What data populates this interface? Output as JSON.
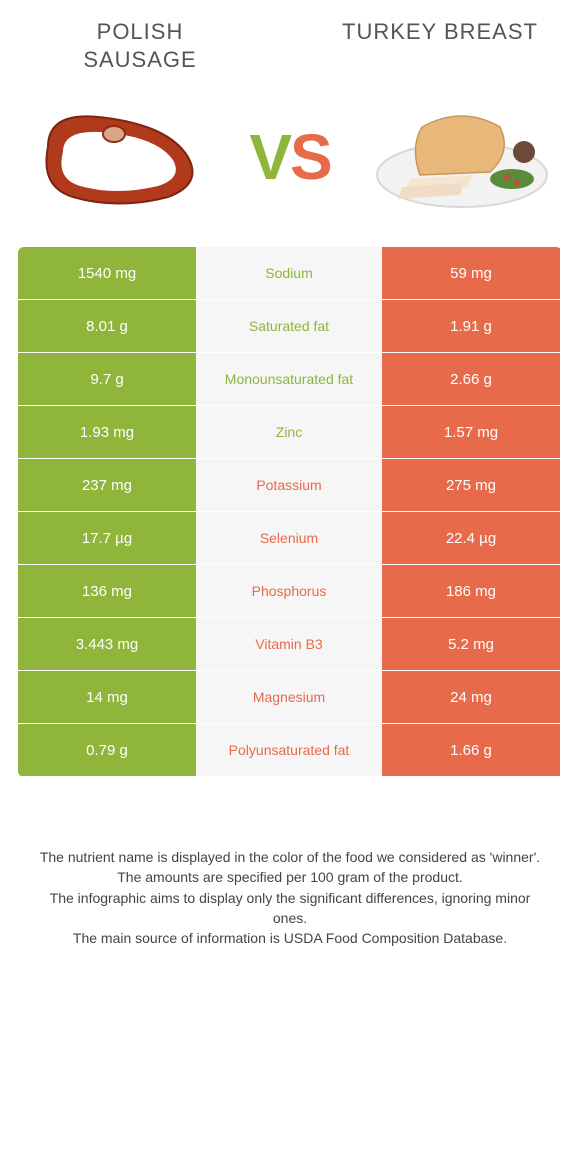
{
  "titles": {
    "left": "POLISH SAUSAGE",
    "right": "TURKEY BREAST"
  },
  "vs": {
    "v": "V",
    "s": "S"
  },
  "colors": {
    "left_bg": "#8fb53b",
    "right_bg": "#e76a4b",
    "mid_bg": "#f6f6f6",
    "cell_text": "#ffffff",
    "nutrient_left_winner": "#8fb53b",
    "nutrient_right_winner": "#e76a4b"
  },
  "table": {
    "rows": [
      {
        "left": "1540 mg",
        "nutrient": "Sodium",
        "right": "59 mg",
        "winner": "left"
      },
      {
        "left": "8.01 g",
        "nutrient": "Saturated fat",
        "right": "1.91 g",
        "winner": "left"
      },
      {
        "left": "9.7 g",
        "nutrient": "Monounsaturated fat",
        "right": "2.66 g",
        "winner": "left"
      },
      {
        "left": "1.93 mg",
        "nutrient": "Zinc",
        "right": "1.57 mg",
        "winner": "left"
      },
      {
        "left": "237 mg",
        "nutrient": "Potassium",
        "right": "275 mg",
        "winner": "right"
      },
      {
        "left": "17.7 µg",
        "nutrient": "Selenium",
        "right": "22.4 µg",
        "winner": "right"
      },
      {
        "left": "136 mg",
        "nutrient": "Phosphorus",
        "right": "186 mg",
        "winner": "right"
      },
      {
        "left": "3.443 mg",
        "nutrient": "Vitamin B3",
        "right": "5.2 mg",
        "winner": "right"
      },
      {
        "left": "14 mg",
        "nutrient": "Magnesium",
        "right": "24 mg",
        "winner": "right"
      },
      {
        "left": "0.79 g",
        "nutrient": "Polyunsaturated fat",
        "right": "1.66 g",
        "winner": "right"
      }
    ]
  },
  "footer": {
    "line1": "The nutrient name is displayed in the color of the food we considered as 'winner'.",
    "line2": "The amounts are specified per 100 gram of the product.",
    "line3": "The infographic aims to display only the significant differences, ignoring minor ones.",
    "line4": "The main source of information is USDA Food Composition Database."
  }
}
